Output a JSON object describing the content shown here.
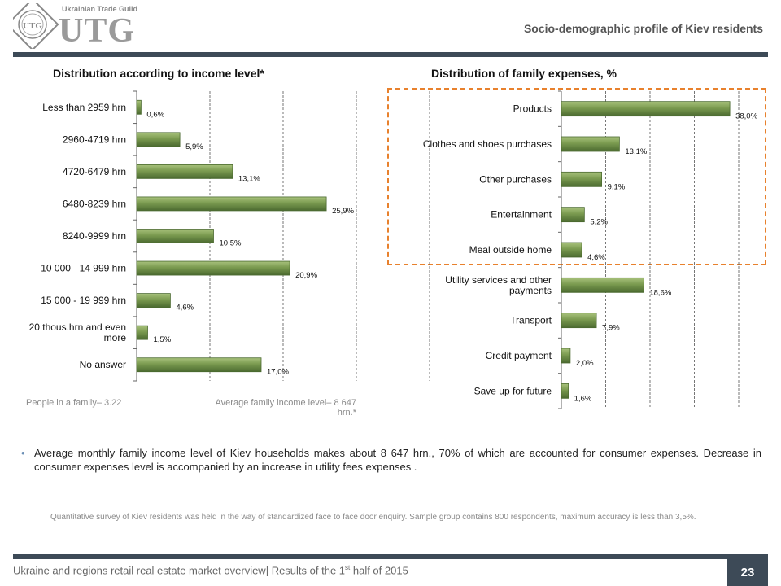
{
  "header": {
    "logo_small_text": "Ukrainian Trade Guild",
    "logo_text": "UTG",
    "page_title": "Socio-demographic profile of Kiev residents"
  },
  "colors": {
    "bar": "#7a9a4f",
    "bar_dark": "#4b6a30",
    "rule": "#3d4a57",
    "highlight": "#e8812d"
  },
  "income": {
    "title": "Distribution according to income level*",
    "note_left": "People in a family– 3.22",
    "note_right_1": "Average family income level– 8 647",
    "note_right_2": "hrn.*"
  },
  "expenses": {
    "title": "Distribution of family expenses, %"
  },
  "chart_data": [
    {
      "type": "bar",
      "orientation": "horizontal",
      "title": "Distribution according to income level*",
      "categories": [
        "Less than 2959 hrn",
        "2960-4719 hrn",
        "4720-6479 hrn",
        "6480-8239 hrn",
        "8240-9999 hrn",
        "10 000 - 14 999 hrn",
        "15 000 - 19 999 hrn",
        "20 thous.hrn and even more",
        "No answer"
      ],
      "values": [
        0.6,
        5.9,
        13.1,
        25.9,
        10.5,
        20.9,
        4.6,
        1.5,
        17.0
      ],
      "value_labels": [
        "0,6%",
        "5,9%",
        "13,1%",
        "25,9%",
        "10,5%",
        "20,9%",
        "4,6%",
        "1,5%",
        "17,0%"
      ],
      "xlim": [
        0,
        40
      ],
      "grid": "vertical dashed"
    },
    {
      "type": "bar",
      "orientation": "horizontal",
      "title": "Distribution of family expenses, %",
      "categories": [
        "Products",
        "Clothes and shoes purchases",
        "Other purchases",
        "Entertainment",
        "Meal outside home",
        "Utility services and other payments",
        "Transport",
        "Credit payment",
        "Save up for future"
      ],
      "values": [
        38.0,
        13.1,
        9.1,
        5.2,
        4.6,
        18.6,
        7.9,
        2.0,
        1.6
      ],
      "value_labels": [
        "38,0%",
        "13,1%",
        "9,1%",
        "5,2%",
        "4,6%",
        "18,6%",
        "7,9%",
        "2,0%",
        "1,6%"
      ],
      "xlim": [
        0,
        40
      ],
      "grid": "vertical dashed"
    }
  ],
  "body": {
    "bullet": "Average monthly family income level of Kiev households makes about 8 647 hrn., 70% of which are accounted for consumer expenses. Decrease in consumer expenses level is accompanied by an increase in utility fees expenses .",
    "footnote": "Quantitative survey  of Kiev residents was held in the way of standardized face to face door enquiry. Sample group contains 800 respondents, maximum accuracy is less than 3,5%."
  },
  "footer": {
    "text_before": "Ukraine and regions retail real estate market overview| Results of the 1",
    "text_sup": "st",
    "text_after": " half of 2015",
    "page_number": "23"
  }
}
